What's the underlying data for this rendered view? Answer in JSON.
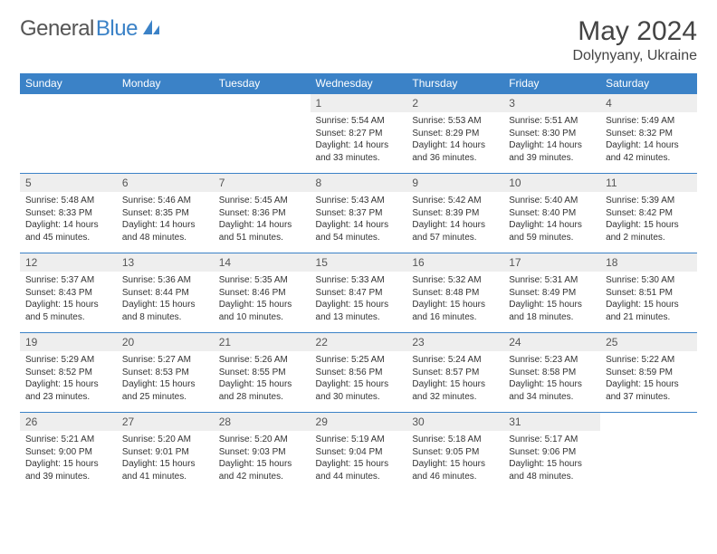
{
  "logo": {
    "part1": "General",
    "part2": "Blue"
  },
  "title": "May 2024",
  "location": "Dolynyany, Ukraine",
  "colors": {
    "header_bg": "#3b82c7",
    "header_text": "#ffffff",
    "daynum_bg": "#eeeeee",
    "text": "#333333"
  },
  "weekdays": [
    "Sunday",
    "Monday",
    "Tuesday",
    "Wednesday",
    "Thursday",
    "Friday",
    "Saturday"
  ],
  "weeks": [
    [
      null,
      null,
      null,
      {
        "n": "1",
        "sr": "5:54 AM",
        "ss": "8:27 PM",
        "dl": "14 hours and 33 minutes."
      },
      {
        "n": "2",
        "sr": "5:53 AM",
        "ss": "8:29 PM",
        "dl": "14 hours and 36 minutes."
      },
      {
        "n": "3",
        "sr": "5:51 AM",
        "ss": "8:30 PM",
        "dl": "14 hours and 39 minutes."
      },
      {
        "n": "4",
        "sr": "5:49 AM",
        "ss": "8:32 PM",
        "dl": "14 hours and 42 minutes."
      }
    ],
    [
      {
        "n": "5",
        "sr": "5:48 AM",
        "ss": "8:33 PM",
        "dl": "14 hours and 45 minutes."
      },
      {
        "n": "6",
        "sr": "5:46 AM",
        "ss": "8:35 PM",
        "dl": "14 hours and 48 minutes."
      },
      {
        "n": "7",
        "sr": "5:45 AM",
        "ss": "8:36 PM",
        "dl": "14 hours and 51 minutes."
      },
      {
        "n": "8",
        "sr": "5:43 AM",
        "ss": "8:37 PM",
        "dl": "14 hours and 54 minutes."
      },
      {
        "n": "9",
        "sr": "5:42 AM",
        "ss": "8:39 PM",
        "dl": "14 hours and 57 minutes."
      },
      {
        "n": "10",
        "sr": "5:40 AM",
        "ss": "8:40 PM",
        "dl": "14 hours and 59 minutes."
      },
      {
        "n": "11",
        "sr": "5:39 AM",
        "ss": "8:42 PM",
        "dl": "15 hours and 2 minutes."
      }
    ],
    [
      {
        "n": "12",
        "sr": "5:37 AM",
        "ss": "8:43 PM",
        "dl": "15 hours and 5 minutes."
      },
      {
        "n": "13",
        "sr": "5:36 AM",
        "ss": "8:44 PM",
        "dl": "15 hours and 8 minutes."
      },
      {
        "n": "14",
        "sr": "5:35 AM",
        "ss": "8:46 PM",
        "dl": "15 hours and 10 minutes."
      },
      {
        "n": "15",
        "sr": "5:33 AM",
        "ss": "8:47 PM",
        "dl": "15 hours and 13 minutes."
      },
      {
        "n": "16",
        "sr": "5:32 AM",
        "ss": "8:48 PM",
        "dl": "15 hours and 16 minutes."
      },
      {
        "n": "17",
        "sr": "5:31 AM",
        "ss": "8:49 PM",
        "dl": "15 hours and 18 minutes."
      },
      {
        "n": "18",
        "sr": "5:30 AM",
        "ss": "8:51 PM",
        "dl": "15 hours and 21 minutes."
      }
    ],
    [
      {
        "n": "19",
        "sr": "5:29 AM",
        "ss": "8:52 PM",
        "dl": "15 hours and 23 minutes."
      },
      {
        "n": "20",
        "sr": "5:27 AM",
        "ss": "8:53 PM",
        "dl": "15 hours and 25 minutes."
      },
      {
        "n": "21",
        "sr": "5:26 AM",
        "ss": "8:55 PM",
        "dl": "15 hours and 28 minutes."
      },
      {
        "n": "22",
        "sr": "5:25 AM",
        "ss": "8:56 PM",
        "dl": "15 hours and 30 minutes."
      },
      {
        "n": "23",
        "sr": "5:24 AM",
        "ss": "8:57 PM",
        "dl": "15 hours and 32 minutes."
      },
      {
        "n": "24",
        "sr": "5:23 AM",
        "ss": "8:58 PM",
        "dl": "15 hours and 34 minutes."
      },
      {
        "n": "25",
        "sr": "5:22 AM",
        "ss": "8:59 PM",
        "dl": "15 hours and 37 minutes."
      }
    ],
    [
      {
        "n": "26",
        "sr": "5:21 AM",
        "ss": "9:00 PM",
        "dl": "15 hours and 39 minutes."
      },
      {
        "n": "27",
        "sr": "5:20 AM",
        "ss": "9:01 PM",
        "dl": "15 hours and 41 minutes."
      },
      {
        "n": "28",
        "sr": "5:20 AM",
        "ss": "9:03 PM",
        "dl": "15 hours and 42 minutes."
      },
      {
        "n": "29",
        "sr": "5:19 AM",
        "ss": "9:04 PM",
        "dl": "15 hours and 44 minutes."
      },
      {
        "n": "30",
        "sr": "5:18 AM",
        "ss": "9:05 PM",
        "dl": "15 hours and 46 minutes."
      },
      {
        "n": "31",
        "sr": "5:17 AM",
        "ss": "9:06 PM",
        "dl": "15 hours and 48 minutes."
      },
      null
    ]
  ],
  "labels": {
    "sunrise": "Sunrise: ",
    "sunset": "Sunset: ",
    "daylight": "Daylight: "
  }
}
